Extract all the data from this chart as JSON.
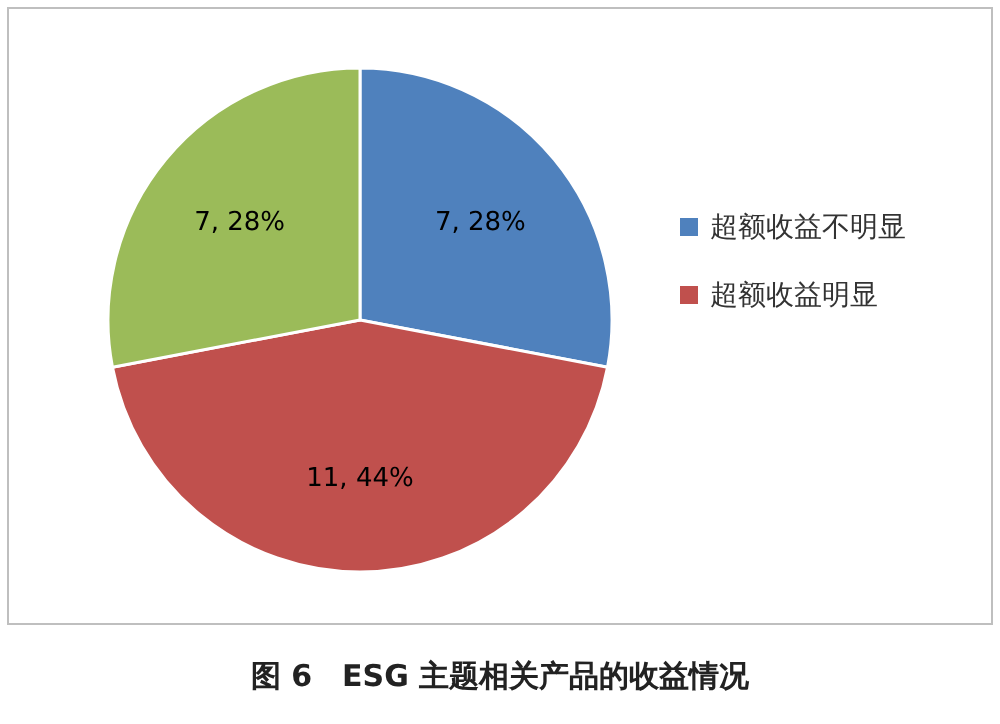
{
  "chart_data": {
    "type": "pie",
    "categories": [
      "超额收益不明显",
      "超额收益明显",
      null
    ],
    "values": [
      7,
      11,
      7
    ],
    "colors": [
      "#4f81bd",
      "#c0504d",
      "#9bbb59"
    ],
    "value_labels": [
      "7, 28%",
      "11, 44%",
      "7, 28%"
    ],
    "legend": "right",
    "annotations": [
      "图 6　ESG 主题相关产品的收益情况"
    ]
  }
}
